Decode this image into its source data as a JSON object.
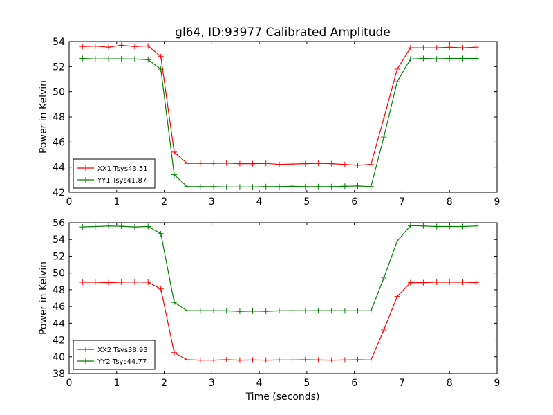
{
  "chart_data": {
    "type": "line",
    "title": "gl64, ID:93977 Calibrated Amplitude",
    "xlabel": "Time (seconds)",
    "panels": [
      {
        "ylabel": "Power in Kelvin",
        "xlim": [
          0,
          9
        ],
        "ylim": [
          42,
          54
        ],
        "xticks": [
          "0",
          "1",
          "2",
          "3",
          "4",
          "5",
          "6",
          "7",
          "8",
          "9"
        ],
        "yticks": [
          "42",
          "44",
          "46",
          "48",
          "50",
          "52",
          "54"
        ],
        "legend_location": "lower-left",
        "series": [
          {
            "name": "XX1 Tsys43.51",
            "color": "#ff0000",
            "x": [
              0.28,
              0.55,
              0.83,
              1.1,
              1.38,
              1.66,
              1.93,
              2.21,
              2.48,
              2.76,
              3.04,
              3.31,
              3.59,
              3.86,
              4.14,
              4.42,
              4.69,
              4.97,
              5.24,
              5.52,
              5.8,
              6.07,
              6.35,
              6.62,
              6.9,
              7.18,
              7.45,
              7.73,
              8.0,
              8.28,
              8.56
            ],
            "y": [
              53.6,
              53.63,
              53.55,
              53.7,
              53.6,
              53.65,
              52.8,
              45.2,
              44.3,
              44.3,
              44.3,
              44.32,
              44.28,
              44.28,
              44.3,
              44.22,
              44.25,
              44.28,
              44.3,
              44.28,
              44.22,
              44.15,
              44.22,
              47.9,
              51.8,
              53.5,
              53.5,
              53.5,
              53.55,
              53.5,
              53.55
            ]
          },
          {
            "name": "YY1 Tsys41.87",
            "color": "#008000",
            "x": [
              0.28,
              0.55,
              0.83,
              1.1,
              1.38,
              1.66,
              1.93,
              2.21,
              2.48,
              2.76,
              3.04,
              3.31,
              3.59,
              3.86,
              4.14,
              4.42,
              4.69,
              4.97,
              5.24,
              5.52,
              5.8,
              6.07,
              6.35,
              6.62,
              6.9,
              7.18,
              7.45,
              7.73,
              8.0,
              8.28,
              8.56
            ],
            "y": [
              52.65,
              52.6,
              52.62,
              52.62,
              52.6,
              52.55,
              51.8,
              43.4,
              42.45,
              42.45,
              42.45,
              42.42,
              42.42,
              42.42,
              42.45,
              42.45,
              42.48,
              42.45,
              42.45,
              42.45,
              42.48,
              42.5,
              42.45,
              46.4,
              50.8,
              52.6,
              52.65,
              52.62,
              52.65,
              52.65,
              52.65
            ]
          }
        ]
      },
      {
        "ylabel": "Power in Kelvin",
        "xlim": [
          0,
          9
        ],
        "ylim": [
          38,
          56
        ],
        "xticks": [
          "0",
          "1",
          "2",
          "3",
          "4",
          "5",
          "6",
          "7",
          "8",
          "9"
        ],
        "yticks": [
          "38",
          "40",
          "42",
          "44",
          "46",
          "48",
          "50",
          "52",
          "54",
          "56"
        ],
        "legend_location": "lower-left",
        "series": [
          {
            "name": "XX2 Tsys38.93",
            "color": "#ff0000",
            "x": [
              0.28,
              0.55,
              0.83,
              1.1,
              1.38,
              1.66,
              1.93,
              2.21,
              2.48,
              2.76,
              3.04,
              3.31,
              3.59,
              3.86,
              4.14,
              4.42,
              4.69,
              4.97,
              5.24,
              5.52,
              5.8,
              6.07,
              6.35,
              6.62,
              6.9,
              7.18,
              7.45,
              7.73,
              8.0,
              8.28,
              8.56
            ],
            "y": [
              48.9,
              48.9,
              48.85,
              48.9,
              48.92,
              48.9,
              48.1,
              40.5,
              39.65,
              39.6,
              39.6,
              39.65,
              39.6,
              39.62,
              39.6,
              39.62,
              39.62,
              39.65,
              39.62,
              39.6,
              39.62,
              39.65,
              39.62,
              43.2,
              47.2,
              48.85,
              48.85,
              48.9,
              48.9,
              48.9,
              48.85
            ]
          },
          {
            "name": "YY2 Tsys44.77",
            "color": "#008000",
            "x": [
              0.28,
              0.55,
              0.83,
              1.1,
              1.38,
              1.66,
              1.93,
              2.21,
              2.48,
              2.76,
              3.04,
              3.31,
              3.59,
              3.86,
              4.14,
              4.42,
              4.69,
              4.97,
              5.24,
              5.52,
              5.8,
              6.07,
              6.35,
              6.62,
              6.9,
              7.18,
              7.45,
              7.73,
              8.0,
              8.28,
              8.56
            ],
            "y": [
              55.5,
              55.55,
              55.6,
              55.58,
              55.5,
              55.55,
              54.7,
              46.5,
              45.5,
              45.5,
              45.5,
              45.48,
              45.42,
              45.45,
              45.42,
              45.48,
              45.5,
              45.48,
              45.5,
              45.5,
              45.48,
              45.48,
              45.48,
              49.4,
              53.8,
              55.65,
              55.6,
              55.55,
              55.55,
              55.55,
              55.6
            ]
          }
        ]
      }
    ]
  }
}
